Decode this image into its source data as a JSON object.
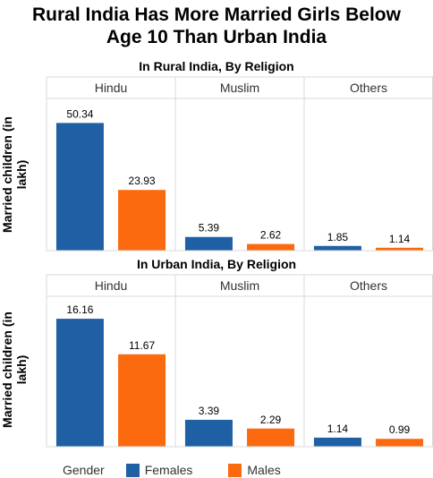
{
  "title": "Rural India Has More Married Girls Below Age 10 Than Urban India",
  "title_lines": [
    "Rural India Has More Married Girls Below",
    "Age 10 Than Urban India"
  ],
  "legend": {
    "title": "Gender",
    "items": [
      {
        "label": "Females",
        "color": "#1f5fa3"
      },
      {
        "label": "Males",
        "color": "#fb6a0f"
      }
    ]
  },
  "chart_data": [
    {
      "type": "bar",
      "title": "In Rural India, By Religion",
      "ylabel": "Married children (in lakh)",
      "facets": [
        "Hindu",
        "Muslim",
        "Others"
      ],
      "series": [
        {
          "name": "Females",
          "color": "#1f5fa3",
          "values": [
            50.34,
            5.39,
            1.85
          ],
          "labels": [
            "50.34",
            "5.39",
            "1.85"
          ]
        },
        {
          "name": "Males",
          "color": "#fb6a0f",
          "values": [
            23.93,
            2.62,
            1.14
          ],
          "labels": [
            "23.93",
            "2.62",
            "1.14"
          ]
        }
      ],
      "ylim": [
        0,
        60
      ],
      "grid": false,
      "legend": "bottom"
    },
    {
      "type": "bar",
      "title": "In Urban India, By Religion",
      "ylabel": "Married children (in lakh)",
      "facets": [
        "Hindu",
        "Muslim",
        "Others"
      ],
      "series": [
        {
          "name": "Females",
          "color": "#1f5fa3",
          "values": [
            16.16,
            3.39,
            1.14
          ],
          "labels": [
            "16.16",
            "3.39",
            "1.14"
          ]
        },
        {
          "name": "Males",
          "color": "#fb6a0f",
          "values": [
            11.67,
            2.29,
            0.99
          ],
          "labels": [
            "11.67",
            "2.29",
            "0.99"
          ]
        }
      ],
      "ylim": [
        0,
        19
      ],
      "grid": false,
      "legend": "bottom"
    }
  ]
}
